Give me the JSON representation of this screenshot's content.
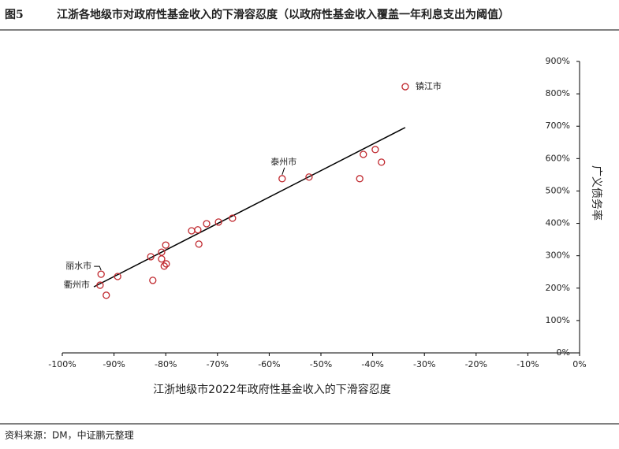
{
  "chart_data": {
    "type": "scatter",
    "figure_label": "图5",
    "title": "江浙各地级市对政府性基金收入的下滑容忍度（以政府性基金收入覆盖一年利息支出为阈值）",
    "x_label": "江浙地级市2022年政府性基金收入的下滑容忍度",
    "y_label": "广义债务率",
    "source": "资料来源：DM，中证鹏元整理",
    "color": "#c0282e",
    "trend_color": "#000000",
    "x": [
      -33.7,
      -39.5,
      -41.8,
      -38.3,
      -42.5,
      -52.3,
      -57.5,
      -67.1,
      -69.8,
      -72.1,
      -73.8,
      -75,
      -73.6,
      -80,
      -80.8,
      -82.9,
      -80.8,
      -79.9,
      -80.3,
      -82.5,
      -89.3,
      -92.5,
      -92.7,
      -91.5
    ],
    "values": [
      822,
      628,
      613,
      589,
      538,
      543,
      538,
      416,
      404,
      399,
      380,
      377,
      336,
      333,
      311,
      297,
      290,
      275,
      268,
      224,
      236,
      243,
      209,
      178
    ],
    "point_labels": [
      "镇江市",
      null,
      null,
      null,
      null,
      null,
      "泰州市",
      null,
      null,
      null,
      null,
      null,
      null,
      null,
      null,
      null,
      null,
      null,
      null,
      null,
      null,
      "丽水市",
      "衢州市",
      null
    ],
    "trendline": {
      "x": [
        -93.9,
        -33.7
      ],
      "values": [
        204,
        696
      ]
    },
    "xlim": [
      -100,
      0
    ],
    "xticks": [
      {
        "value": -100,
        "label": "-100%"
      },
      {
        "value": -90,
        "label": "-90%"
      },
      {
        "value": -80,
        "label": "-80%"
      },
      {
        "value": -70,
        "label": "-70%"
      },
      {
        "value": -60,
        "label": "-60%"
      },
      {
        "value": -50,
        "label": "-50%"
      },
      {
        "value": -40,
        "label": "-40%"
      },
      {
        "value": -30,
        "label": "-30%"
      },
      {
        "value": -20,
        "label": "-20%"
      },
      {
        "value": -10,
        "label": "-10%"
      },
      {
        "value": 0,
        "label": "0%"
      }
    ],
    "ylim": [
      0,
      900
    ],
    "yticks": [
      {
        "value": 0,
        "label": "0%"
      },
      {
        "value": 100,
        "label": "100%"
      },
      {
        "value": 200,
        "label": "200%"
      },
      {
        "value": 300,
        "label": "300%"
      },
      {
        "value": 400,
        "label": "400%"
      },
      {
        "value": 500,
        "label": "500%"
      },
      {
        "value": 600,
        "label": "600%"
      },
      {
        "value": 700,
        "label": "700%"
      },
      {
        "value": 800,
        "label": "800%"
      },
      {
        "value": 900,
        "label": "900%"
      }
    ]
  }
}
